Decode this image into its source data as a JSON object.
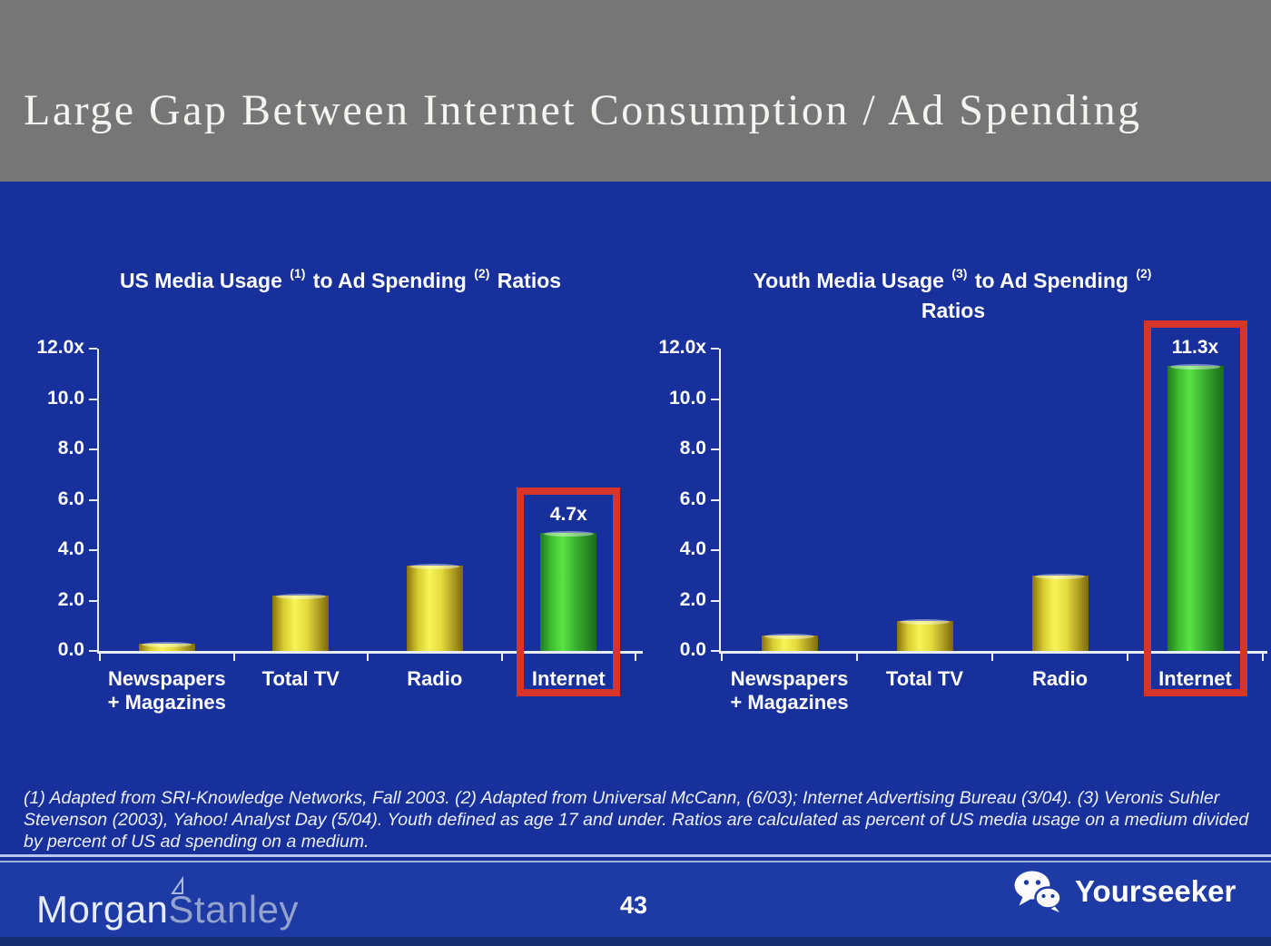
{
  "header": {
    "title": "Large Gap Between Internet Consumption / Ad Spending"
  },
  "chart_data": [
    {
      "type": "bar",
      "title": "US Media Usage (1) to Ad Spending (2) Ratios",
      "title_parts": [
        {
          "t": "US Media Usage "
        },
        {
          "s": "(1)"
        },
        {
          "t": " to Ad Spending "
        },
        {
          "s": "(2)"
        },
        {
          "t": " Ratios"
        }
      ],
      "categories": [
        "Newspapers + Magazines",
        "Total TV",
        "Radio",
        "Internet"
      ],
      "category_lines": [
        [
          "Newspapers",
          "+ Magazines"
        ],
        [
          "Total TV"
        ],
        [
          "Radio"
        ],
        [
          "Internet"
        ]
      ],
      "values": [
        0.3,
        2.2,
        3.4,
        4.7
      ],
      "value_labels": [
        "",
        "",
        "",
        "4.7x"
      ],
      "bar_styles": [
        "yellow",
        "yellow",
        "yellow",
        "green"
      ],
      "bar_colors": [
        "#F4EE4E",
        "#F4EE4E",
        "#F4EE4E",
        "#55DC40"
      ],
      "highlighted_index": 3,
      "highlight_color": "#D8352A",
      "xlabel": "",
      "ylabel": "",
      "ylim": [
        0,
        12
      ],
      "yticks": [
        {
          "value": 12,
          "label": "12.0x"
        },
        {
          "value": 10,
          "label": "10.0"
        },
        {
          "value": 8,
          "label": "8.0"
        },
        {
          "value": 6,
          "label": "6.0"
        },
        {
          "value": 4,
          "label": "4.0"
        },
        {
          "value": 2,
          "label": "2.0"
        },
        {
          "value": 0,
          "label": "0.0"
        }
      ],
      "grid": false,
      "legend": null
    },
    {
      "type": "bar",
      "title": "Youth Media Usage (3) to Ad Spending (2) Ratios",
      "title_parts": [
        {
          "t": "Youth Media Usage "
        },
        {
          "s": "(3)"
        },
        {
          "t": " to Ad Spending "
        },
        {
          "s": "(2)"
        },
        {
          "t": "Ratios",
          "block": true
        }
      ],
      "categories": [
        "Newspapers + Magazines",
        "Total TV",
        "Radio",
        "Internet"
      ],
      "category_lines": [
        [
          "Newspapers",
          "+ Magazines"
        ],
        [
          "Total TV"
        ],
        [
          "Radio"
        ],
        [
          "Internet"
        ]
      ],
      "values": [
        0.6,
        1.2,
        3.0,
        11.3
      ],
      "value_labels": [
        "",
        "",
        "",
        "11.3x"
      ],
      "bar_styles": [
        "yellow",
        "yellow",
        "yellow",
        "green"
      ],
      "bar_colors": [
        "#F4EE4E",
        "#F4EE4E",
        "#F4EE4E",
        "#55DC40"
      ],
      "highlighted_index": 3,
      "highlight_color": "#D8352A",
      "xlabel": "",
      "ylabel": "",
      "ylim": [
        0,
        12
      ],
      "yticks": [
        {
          "value": 12,
          "label": "12.0x"
        },
        {
          "value": 10,
          "label": "10.0"
        },
        {
          "value": 8,
          "label": "8.0"
        },
        {
          "value": 6,
          "label": "6.0"
        },
        {
          "value": 4,
          "label": "4.0"
        },
        {
          "value": 2,
          "label": "2.0"
        },
        {
          "value": 0,
          "label": "0.0"
        }
      ],
      "grid": false,
      "legend": null
    }
  ],
  "footnote": {
    "text": "(1) Adapted from SRI-Knowledge Networks, Fall 2003.  (2) Adapted from Universal McCann, (6/03); Internet Advertising Bureau (3/04). (3) Veronis Suhler Stevenson (2003), Yahoo! Analyst Day (5/04).  Youth defined as age 17 and under.  Ratios are calculated as percent of US media usage on a medium divided by percent of US ad spending on a medium."
  },
  "footer": {
    "logo_part1": "Morgan",
    "logo_part2": "Stanley",
    "page_number": "43",
    "watermark": "Yourseeker"
  },
  "colors": {
    "header_gray": "#767676",
    "background_blue": "#17309C",
    "footer_blue": "#1E3AA4",
    "bar_yellow": "#F4EE4E",
    "bar_green": "#55DC40",
    "highlight_red": "#D8352A",
    "axis_white": "#E8EDFA"
  }
}
